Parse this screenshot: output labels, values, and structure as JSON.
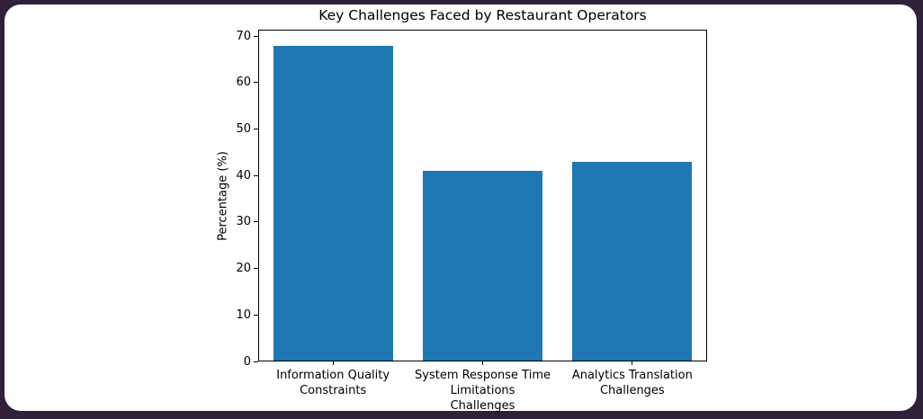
{
  "window": {
    "background_color": "#2f2139",
    "card_color": "#ffffff"
  },
  "chart_data": {
    "type": "bar",
    "title": "Key Challenges Faced by Restaurant Operators",
    "xlabel": "Challenges",
    "ylabel": "Percentage (%)",
    "categories": [
      "Information Quality\nConstraints",
      "System Response Time\nLimitations",
      "Analytics Translation\nChallenges"
    ],
    "values": [
      68,
      41,
      43
    ],
    "yticks": [
      0,
      10,
      20,
      30,
      40,
      50,
      60,
      70
    ],
    "ylim": [
      0,
      71.4
    ],
    "bar_width_fraction": 0.8,
    "bar_color": "#1f77b4",
    "axis_color": "#000000",
    "text_color": "#000000",
    "grid": false
  }
}
